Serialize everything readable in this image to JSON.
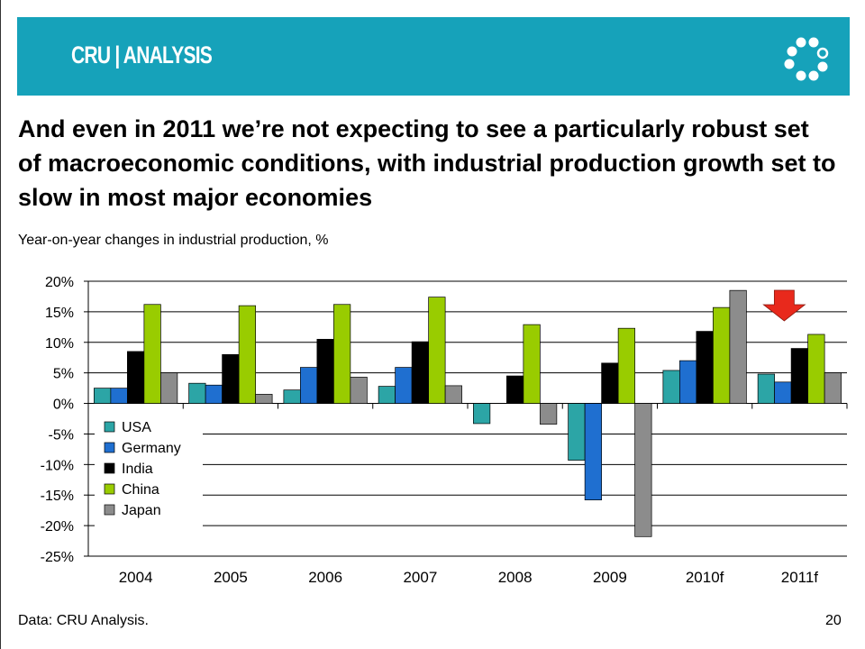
{
  "header": {
    "logo_text": "CRU | ANALYSIS",
    "logo_icon": "circle-of-dots-icon",
    "bar_color": "#16a2ba"
  },
  "slide": {
    "title": "And even in 2011 we’re not expecting to see a particularly robust set of macroeconomic conditions, with industrial production growth set to slow in most major economies",
    "subtitle": "Year-on-year changes in industrial production, %",
    "source": "Data: CRU Analysis.",
    "page_number": "20"
  },
  "chart_data": {
    "type": "bar",
    "categories": [
      "2004",
      "2005",
      "2006",
      "2007",
      "2008",
      "2009",
      "2010f",
      "2011f"
    ],
    "series": [
      {
        "name": "USA",
        "color": "#2ca5a6",
        "values": [
          2.5,
          3.3,
          2.2,
          2.8,
          -3.3,
          -9.3,
          5.4,
          4.8
        ]
      },
      {
        "name": "Germany",
        "color": "#1f6fd0",
        "values": [
          2.5,
          3.0,
          5.9,
          5.9,
          0.0,
          -15.8,
          7.0,
          3.5
        ]
      },
      {
        "name": "India",
        "color": "#000000",
        "values": [
          8.5,
          8.0,
          10.5,
          10.1,
          4.5,
          6.6,
          11.8,
          9.0
        ]
      },
      {
        "name": "China",
        "color": "#99cc00",
        "values": [
          16.2,
          16.0,
          16.2,
          17.4,
          12.9,
          12.3,
          15.7,
          11.3
        ]
      },
      {
        "name": "Japan",
        "color": "#8c8c8c",
        "values": [
          5.0,
          1.5,
          4.3,
          2.9,
          -3.4,
          -21.8,
          18.5,
          5.0
        ]
      }
    ],
    "yticks": [
      "20%",
      "15%",
      "10%",
      "5%",
      "0%",
      "-5%",
      "-10%",
      "-15%",
      "-20%",
      "-25%"
    ],
    "ylim": [
      -25,
      20
    ],
    "xlabel": "",
    "ylabel": "",
    "grid": true,
    "legend_position": "lower-left",
    "annotation": {
      "type": "down-arrow",
      "category": "2011f",
      "color": "#e8291c"
    }
  }
}
